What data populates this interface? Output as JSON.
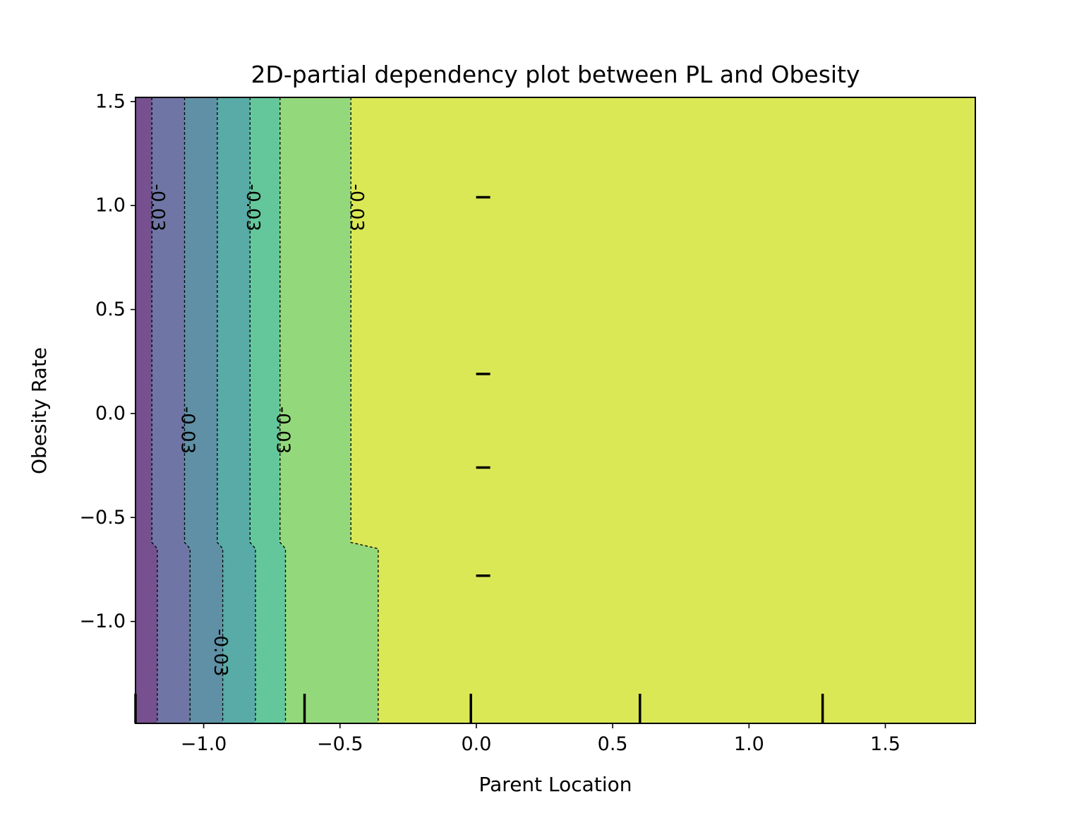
{
  "chart_data": {
    "type": "contour",
    "title": "2D-partial dependency plot between PL and Obesity",
    "xlabel": "Parent Location",
    "ylabel": "Obesity Rate",
    "xlim": [
      -1.25,
      1.83
    ],
    "ylim": [
      -1.49,
      1.52
    ],
    "xticks": [
      -1.0,
      -0.5,
      0.0,
      0.5,
      1.0,
      1.5
    ],
    "xtick_labels": [
      "−1.0",
      "−0.5",
      "0.0",
      "0.5",
      "1.0",
      "1.5"
    ],
    "yticks": [
      -1.0,
      -0.5,
      0.0,
      0.5,
      1.0,
      1.5
    ],
    "ytick_labels": [
      "−1.0",
      "−0.5",
      "0.0",
      "0.5",
      "1.0",
      "1.5"
    ],
    "colors": [
      "#76508f",
      "#6f76a5",
      "#5f90a5",
      "#58aba7",
      "#64c79b",
      "#93d97c",
      "#dae856"
    ],
    "contour_lines": [
      {
        "top_x": -1.19,
        "bottom_x": -1.17,
        "break_y": -0.62
      },
      {
        "top_x": -1.07,
        "bottom_x": -1.05,
        "break_y": -0.62
      },
      {
        "top_x": -0.95,
        "bottom_x": -0.93,
        "break_y": -0.62
      },
      {
        "top_x": -0.83,
        "bottom_x": -0.81,
        "break_y": -0.62
      },
      {
        "top_x": -0.72,
        "bottom_x": -0.7,
        "break_y": -0.62
      },
      {
        "top_x": -0.46,
        "bottom_x": -0.36,
        "break_y": -0.62
      }
    ],
    "contour_labels": [
      {
        "text": "-0.03",
        "x": -1.17,
        "y": 0.99
      },
      {
        "text": "-0.03",
        "x": -0.82,
        "y": 0.99
      },
      {
        "text": "-0.03",
        "x": -0.44,
        "y": 0.99
      },
      {
        "text": "-0.03",
        "x": -1.06,
        "y": -0.08
      },
      {
        "text": "-0.03",
        "x": -0.71,
        "y": -0.08
      },
      {
        "text": "-0.03",
        "x": -0.94,
        "y": -1.15
      }
    ],
    "x_rug": [
      -1.25,
      -0.63,
      -0.02,
      0.6,
      1.27
    ],
    "y_rug": [
      1.04,
      0.19,
      -0.26,
      -0.78
    ],
    "y_rug_x": 0.025
  }
}
